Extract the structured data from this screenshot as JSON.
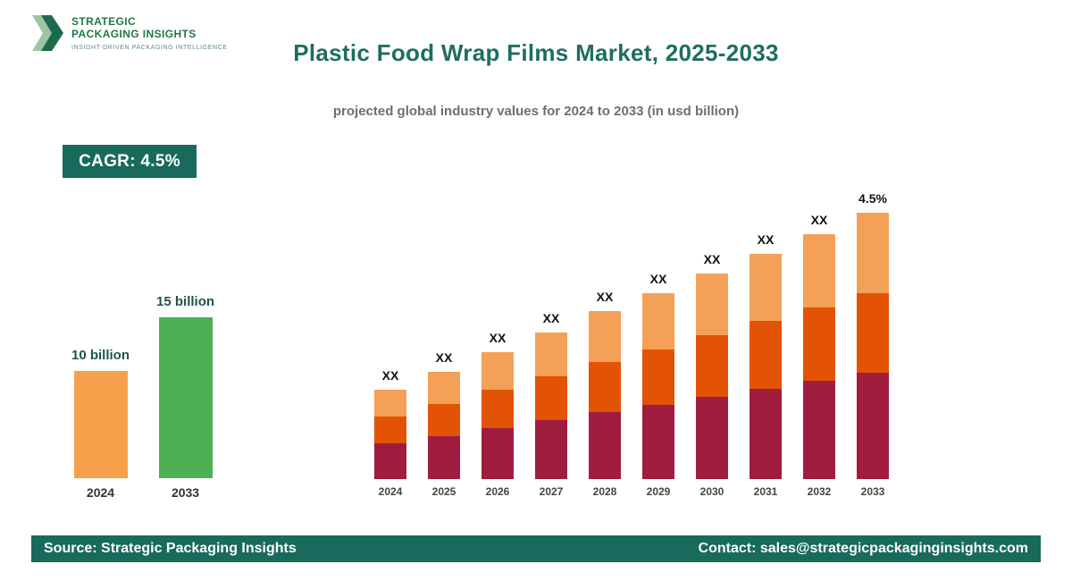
{
  "logo": {
    "line1": "STRATEGIC",
    "line2": "PACKAGING INSIGHTS",
    "tagline": "INSIGHT-DRIVEN PACKAGING INTELLIGENCE"
  },
  "header": {
    "title": "Plastic Food Wrap Films Market, 2025-2033",
    "subtitle": "projected global industry values for 2024 to 2033 (in usd billion)"
  },
  "cagr_badge": {
    "label": "CAGR: 4.5%"
  },
  "footer": {
    "source": "Source: Strategic Packaging Insights",
    "contact": "Contact: sales@strategicpackaginginsights.com"
  },
  "colors": {
    "brand_teal": "#186a5c",
    "title_teal": "#1e6e60",
    "logo_green": "#1d7a46",
    "summary_orange": "#f6a04c",
    "summary_green": "#4fb053",
    "stack_bottom": "#a01d40",
    "stack_middle": "#e35305",
    "stack_top": "#f4a056"
  },
  "chart_data": [
    {
      "type": "bar",
      "name": "summary-comparison",
      "title": "",
      "xlabel": "",
      "ylabel": "",
      "units": "USD billion",
      "categories": [
        "2024",
        "2033"
      ],
      "values": [
        10,
        15
      ],
      "value_labels": [
        "10 billion",
        "15 billion"
      ],
      "bar_colors": [
        "#f6a04c",
        "#4fb053"
      ],
      "grid": false,
      "legend": "none"
    },
    {
      "type": "bar",
      "name": "stacked-projection",
      "stacked": true,
      "title": "",
      "xlabel": "",
      "ylabel": "",
      "categories": [
        "2024",
        "2025",
        "2026",
        "2027",
        "2028",
        "2029",
        "2030",
        "2031",
        "2032",
        "2033"
      ],
      "series": [
        {
          "name": "bottom-segment",
          "color": "#a01d40",
          "values": [
            40,
            48,
            57,
            66,
            75,
            83,
            92,
            101,
            110,
            119
          ]
        },
        {
          "name": "middle-segment",
          "color": "#e35305",
          "values": [
            30,
            36,
            43,
            49,
            56,
            62,
            69,
            76,
            82,
            89
          ]
        },
        {
          "name": "top-segment",
          "color": "#f4a056",
          "values": [
            30,
            36,
            42,
            49,
            57,
            63,
            69,
            75,
            82,
            90
          ]
        }
      ],
      "totals": [
        100,
        120,
        142,
        164,
        188,
        208,
        230,
        252,
        274,
        298
      ],
      "bar_labels": [
        "XX",
        "XX",
        "XX",
        "XX",
        "XX",
        "XX",
        "XX",
        "XX",
        "XX",
        "4.5%"
      ],
      "value_note": "bar values shown as XX placeholders in source; series values are relative heights estimated from pixels (2024 total = 100)",
      "grid": false,
      "legend": "none"
    }
  ]
}
